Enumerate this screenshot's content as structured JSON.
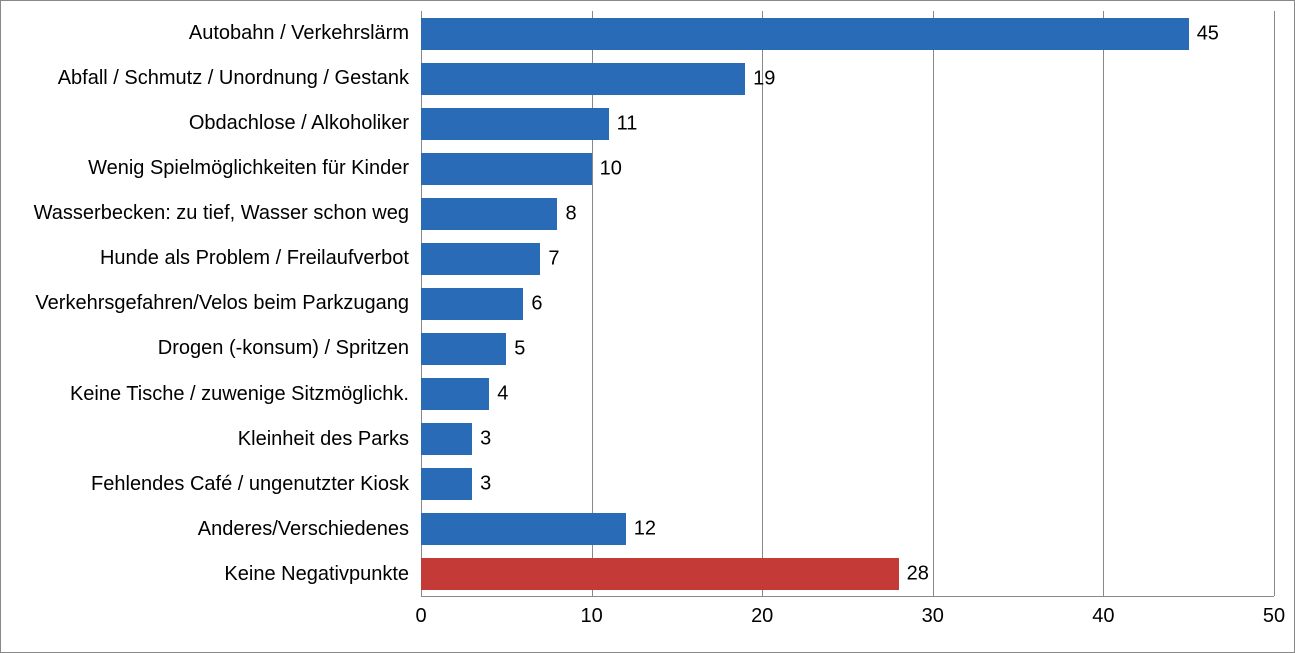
{
  "chart": {
    "type": "bar-horizontal",
    "xlim": [
      0,
      50
    ],
    "xtick_step": 10,
    "xticks": [
      0,
      10,
      20,
      30,
      40,
      50
    ],
    "background_color": "#ffffff",
    "border_color": "#888888",
    "grid_color": "#888888",
    "label_fontsize": 20,
    "value_fontsize": 20,
    "tick_fontsize": 20,
    "bar_gap_ratio": 0.3,
    "default_bar_color": "#2a6bb8",
    "highlight_bar_color": "#c43a36",
    "items": [
      {
        "label": "Autobahn / Verkehrslärm",
        "value": 45,
        "color": "#2a6bb8"
      },
      {
        "label": "Abfall / Schmutz / Unordnung / Gestank",
        "value": 19,
        "color": "#2a6bb8"
      },
      {
        "label": "Obdachlose / Alkoholiker",
        "value": 11,
        "color": "#2a6bb8"
      },
      {
        "label": "Wenig Spielmöglichkeiten für Kinder",
        "value": 10,
        "color": "#2a6bb8"
      },
      {
        "label": "Wasserbecken: zu tief, Wasser schon weg",
        "value": 8,
        "color": "#2a6bb8"
      },
      {
        "label": "Hunde als Problem / Freilaufverbot",
        "value": 7,
        "color": "#2a6bb8"
      },
      {
        "label": "Verkehrsgefahren/Velos beim Parkzugang",
        "value": 6,
        "color": "#2a6bb8"
      },
      {
        "label": "Drogen (-konsum) / Spritzen",
        "value": 5,
        "color": "#2a6bb8"
      },
      {
        "label": "Keine Tische / zuwenige Sitzmöglichk.",
        "value": 4,
        "color": "#2a6bb8"
      },
      {
        "label": "Kleinheit des Parks",
        "value": 3,
        "color": "#2a6bb8"
      },
      {
        "label": "Fehlendes Café / ungenutzter Kiosk",
        "value": 3,
        "color": "#2a6bb8"
      },
      {
        "label": "Anderes/Verschiedenes",
        "value": 12,
        "color": "#2a6bb8"
      },
      {
        "label": "Keine Negativpunkte",
        "value": 28,
        "color": "#c43a36"
      }
    ]
  }
}
